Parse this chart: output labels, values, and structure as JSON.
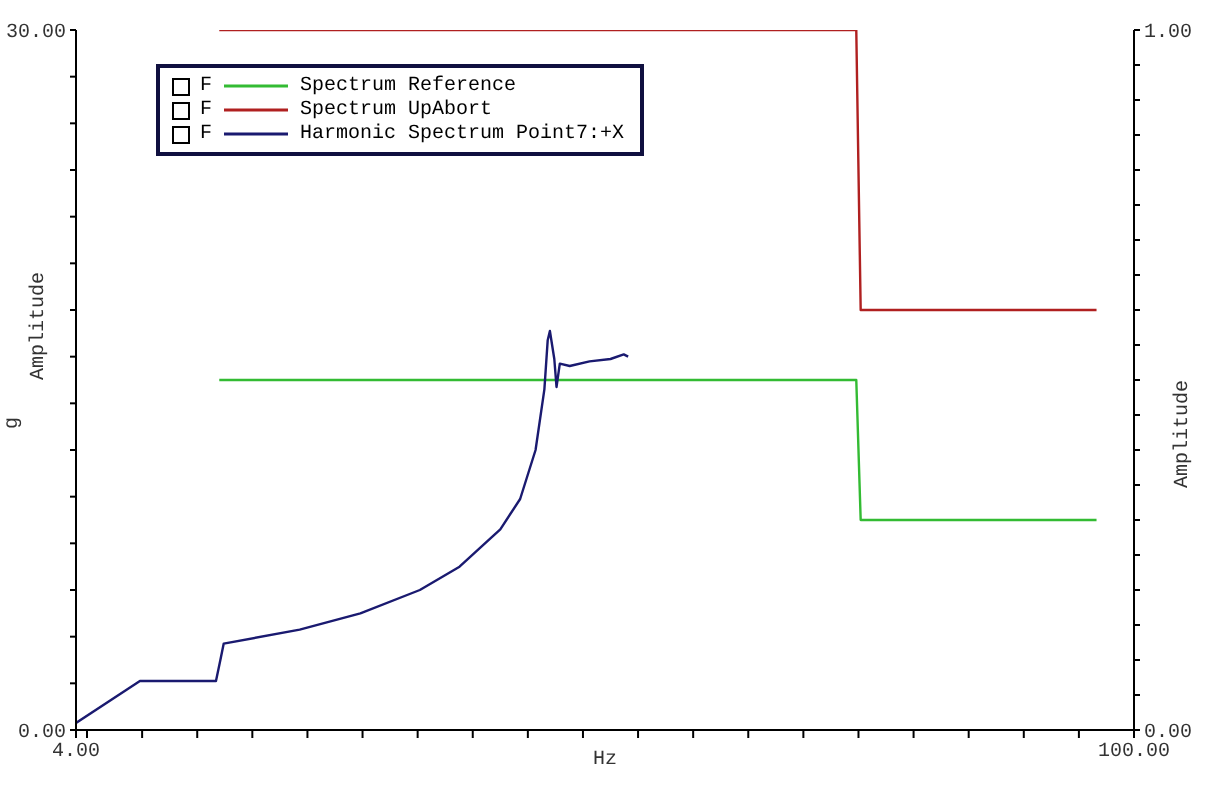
{
  "chart_data": {
    "type": "line",
    "xlabel": "Hz",
    "ylabel": "Amplitude",
    "y2label": "Amplitude",
    "annotations": [
      "g",
      "F",
      "F",
      "F"
    ],
    "xlim": [
      4,
      100
    ],
    "xticks": [
      {
        "value": 4,
        "label": "4.00"
      },
      {
        "value": 5,
        "label": null
      },
      {
        "value": 10,
        "label": null
      },
      {
        "value": 15,
        "label": null
      },
      {
        "value": 20,
        "label": null
      },
      {
        "value": 25,
        "label": null
      },
      {
        "value": 30,
        "label": null
      },
      {
        "value": 35,
        "label": null
      },
      {
        "value": 40,
        "label": null
      },
      {
        "value": 45,
        "label": null
      },
      {
        "value": 50,
        "label": null
      },
      {
        "value": 55,
        "label": null
      },
      {
        "value": 60,
        "label": null
      },
      {
        "value": 65,
        "label": null
      },
      {
        "value": 70,
        "label": null
      },
      {
        "value": 75,
        "label": null
      },
      {
        "value": 80,
        "label": null
      },
      {
        "value": 85,
        "label": null
      },
      {
        "value": 90,
        "label": null
      },
      {
        "value": 95,
        "label": null
      },
      {
        "value": 100,
        "label": "100.00"
      }
    ],
    "ylim": [
      0,
      30
    ],
    "yticks": [
      {
        "value": 0,
        "label": "0.00"
      },
      {
        "value": 2,
        "label": null
      },
      {
        "value": 4,
        "label": null
      },
      {
        "value": 6,
        "label": null
      },
      {
        "value": 8,
        "label": null
      },
      {
        "value": 10,
        "label": null
      },
      {
        "value": 12,
        "label": null
      },
      {
        "value": 14,
        "label": null
      },
      {
        "value": 16,
        "label": null
      },
      {
        "value": 18,
        "label": null
      },
      {
        "value": 20,
        "label": null
      },
      {
        "value": 22,
        "label": null
      },
      {
        "value": 24,
        "label": null
      },
      {
        "value": 26,
        "label": null
      },
      {
        "value": 28,
        "label": null
      },
      {
        "value": 30,
        "label": "30.00"
      }
    ],
    "y2lim": [
      0,
      1
    ],
    "y2ticks": [
      {
        "value": 0,
        "label": "0.00"
      },
      {
        "value": 0.05,
        "label": null
      },
      {
        "value": 0.1,
        "label": null
      },
      {
        "value": 0.15,
        "label": null
      },
      {
        "value": 0.2,
        "label": null
      },
      {
        "value": 0.25,
        "label": null
      },
      {
        "value": 0.3,
        "label": null
      },
      {
        "value": 0.35,
        "label": null
      },
      {
        "value": 0.4,
        "label": null
      },
      {
        "value": 0.45,
        "label": null
      },
      {
        "value": 0.5,
        "label": null
      },
      {
        "value": 0.55,
        "label": null
      },
      {
        "value": 0.6,
        "label": null
      },
      {
        "value": 0.65,
        "label": null
      },
      {
        "value": 0.7,
        "label": null
      },
      {
        "value": 0.75,
        "label": null
      },
      {
        "value": 0.8,
        "label": null
      },
      {
        "value": 0.85,
        "label": null
      },
      {
        "value": 0.9,
        "label": null
      },
      {
        "value": 0.95,
        "label": null
      },
      {
        "value": 1,
        "label": "1.00"
      }
    ],
    "legend": "top left",
    "series": [
      {
        "name": "Spectrum Reference",
        "color": "#33bb33",
        "x": [
          17,
          74.8,
          75.2,
          96.6
        ],
        "values": [
          15,
          15,
          9,
          9
        ]
      },
      {
        "name": "Spectrum UpAbort",
        "color": "#b02020",
        "x": [
          17,
          74.8,
          75.2,
          96.6
        ],
        "values": [
          30,
          30,
          18,
          18
        ]
      },
      {
        "name": "Harmonic Spectrum Point7:+X",
        "color": "#1a1a70",
        "x": [
          4,
          9.8,
          16.7,
          17.1,
          17.4,
          24.3,
          29.8,
          35.2,
          38.8,
          42.5,
          44.3,
          45.7,
          46.5,
          46.8,
          47.0,
          47.4,
          47.6,
          47.9,
          48.8,
          50.6,
          52.5,
          53.7,
          54.1
        ],
        "values": [
          0.3,
          2.1,
          2.1,
          3.0,
          3.7,
          4.3,
          5.0,
          6.0,
          7.0,
          8.6,
          9.9,
          12.0,
          14.6,
          16.7,
          17.1,
          15.9,
          14.7,
          15.7,
          15.6,
          15.8,
          15.9,
          16.1,
          16.0
        ]
      }
    ]
  }
}
